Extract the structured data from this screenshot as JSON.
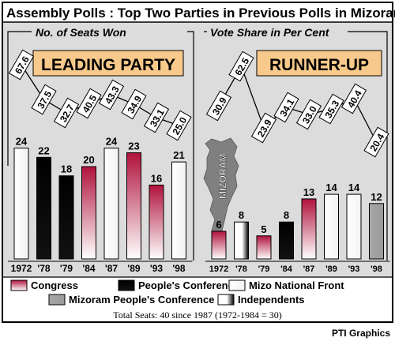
{
  "title": "Assembly Polls : Top Two Parties in Previous Polls in Mizoram",
  "credit": "PTI Graphics",
  "total_seats_note": "Total Seats: 40 since 1987 (1972-1984 = 30)",
  "state_label": "MIZORAM",
  "colors": {
    "panel_bg": "#dcdcdc",
    "banner_bg": "#f7c98a",
    "congress": "#b0123c",
    "peoples_conference": "#000000",
    "mnf": "#ffffff",
    "mpc": "#a6a6a6",
    "independents": "#000000",
    "map": "#808080"
  },
  "legend": [
    {
      "key": "congress",
      "label": "Congress"
    },
    {
      "key": "peoples_conference",
      "label": "People's Conference"
    },
    {
      "key": "mnf",
      "label": "Mizo National Front"
    },
    {
      "key": "mpc",
      "label": "Mizoram People's Conference"
    },
    {
      "key": "independents",
      "label": "Independents"
    }
  ],
  "chart_data": [
    {
      "type": "bar",
      "title": "LEADING PARTY",
      "subtitle": "No. of Seats Won",
      "categories": [
        "1972",
        "'78",
        "'79",
        "'84",
        "'87",
        "'89",
        "'93",
        "'98"
      ],
      "values": [
        24,
        22,
        18,
        20,
        24,
        23,
        16,
        21
      ],
      "parties": [
        "mnf",
        "peoples_conference",
        "peoples_conference",
        "congress",
        "mnf",
        "congress",
        "congress",
        "mnf"
      ],
      "ylim": [
        0,
        40
      ],
      "vote_share": {
        "label": "No. of Seats Won",
        "values": [
          "67.6",
          "37.5",
          "32.7",
          "40.5",
          "43.3",
          "34.9",
          "33.1",
          "25.0"
        ]
      }
    },
    {
      "type": "bar",
      "title": "RUNNER-UP",
      "subtitle": "Vote Share in Per Cent",
      "categories": [
        "1972",
        "'78",
        "'79",
        "'84",
        "'87",
        "'89",
        "'93",
        "'98"
      ],
      "values": [
        6,
        8,
        5,
        8,
        13,
        14,
        14,
        12
      ],
      "parties": [
        "congress",
        "independents",
        "congress",
        "peoples_conference",
        "congress",
        "mnf",
        "mnf",
        "mpc"
      ],
      "ylim": [
        0,
        40
      ],
      "vote_share": {
        "label": "Vote Share in Per Cent",
        "values": [
          "30.9",
          "62.5",
          "23.9",
          "34.1",
          "33.0",
          "35.3",
          "40.4",
          "20.4"
        ]
      }
    }
  ]
}
